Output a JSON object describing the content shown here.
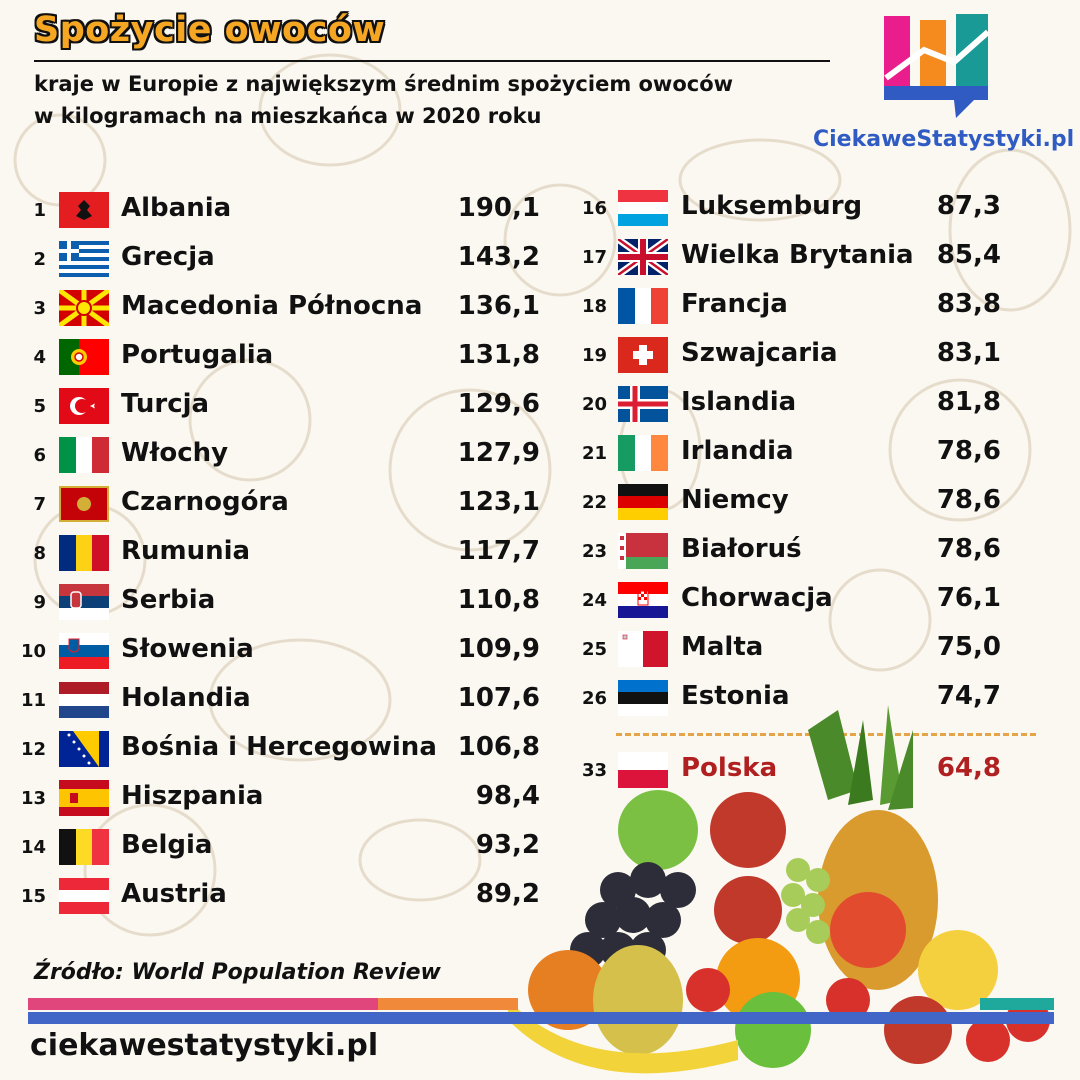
{
  "header": {
    "title": "Spożycie owoców",
    "subtitle_line1": "kraje w Europie z największym średnim spożyciem owoców",
    "subtitle_line2": "w kilogramach na mieszkańca w 2020 roku",
    "brand": "CiekaweStatystyki.pl"
  },
  "footer": {
    "source": "Źródło: World Population Review",
    "url": "ciekawestatystyki.pl"
  },
  "colors": {
    "title": "#f5a623",
    "highlight": "#b02020",
    "brand": "#2f5bc2",
    "dash": "#e3a548"
  },
  "chart_data": {
    "type": "table",
    "columns": [
      "rank",
      "country",
      "value"
    ],
    "rows": [
      {
        "rank": "1",
        "country": "Albania",
        "value": "190,1",
        "flag": "albania"
      },
      {
        "rank": "2",
        "country": "Grecja",
        "value": "143,2",
        "flag": "greece"
      },
      {
        "rank": "3",
        "country": "Macedonia Północna",
        "value": "136,1",
        "flag": "north-macedonia"
      },
      {
        "rank": "4",
        "country": "Portugalia",
        "value": "131,8",
        "flag": "portugal"
      },
      {
        "rank": "5",
        "country": "Turcja",
        "value": "129,6",
        "flag": "turkey"
      },
      {
        "rank": "6",
        "country": "Włochy",
        "value": "127,9",
        "flag": "italy"
      },
      {
        "rank": "7",
        "country": "Czarnogóra",
        "value": "123,1",
        "flag": "montenegro"
      },
      {
        "rank": "8",
        "country": "Rumunia",
        "value": "117,7",
        "flag": "romania"
      },
      {
        "rank": "9",
        "country": "Serbia",
        "value": "110,8",
        "flag": "serbia"
      },
      {
        "rank": "10",
        "country": "Słowenia",
        "value": "109,9",
        "flag": "slovenia"
      },
      {
        "rank": "11",
        "country": "Holandia",
        "value": "107,6",
        "flag": "netherlands"
      },
      {
        "rank": "12",
        "country": "Bośnia i Hercegowina",
        "value": "106,8",
        "flag": "bosnia"
      },
      {
        "rank": "13",
        "country": "Hiszpania",
        "value": "98,4",
        "flag": "spain"
      },
      {
        "rank": "14",
        "country": "Belgia",
        "value": "93,2",
        "flag": "belgium"
      },
      {
        "rank": "15",
        "country": "Austria",
        "value": "89,2",
        "flag": "austria"
      },
      {
        "rank": "16",
        "country": "Luksemburg",
        "value": "87,3",
        "flag": "luxembourg"
      },
      {
        "rank": "17",
        "country": "Wielka Brytania",
        "value": "85,4",
        "flag": "uk"
      },
      {
        "rank": "18",
        "country": "Francja",
        "value": "83,8",
        "flag": "france"
      },
      {
        "rank": "19",
        "country": "Szwajcaria",
        "value": "83,1",
        "flag": "switzerland"
      },
      {
        "rank": "20",
        "country": "Islandia",
        "value": "81,8",
        "flag": "iceland"
      },
      {
        "rank": "21",
        "country": "Irlandia",
        "value": "78,6",
        "flag": "ireland"
      },
      {
        "rank": "22",
        "country": "Niemcy",
        "value": "78,6",
        "flag": "germany"
      },
      {
        "rank": "23",
        "country": "Białoruś",
        "value": "78,6",
        "flag": "belarus"
      },
      {
        "rank": "24",
        "country": "Chorwacja",
        "value": "76,1",
        "flag": "croatia"
      },
      {
        "rank": "25",
        "country": "Malta",
        "value": "75,0",
        "flag": "malta"
      },
      {
        "rank": "26",
        "country": "Estonia",
        "value": "74,7",
        "flag": "estonia"
      }
    ],
    "highlight": {
      "rank": "33",
      "country": "Polska",
      "value": "64,8",
      "flag": "poland"
    }
  }
}
